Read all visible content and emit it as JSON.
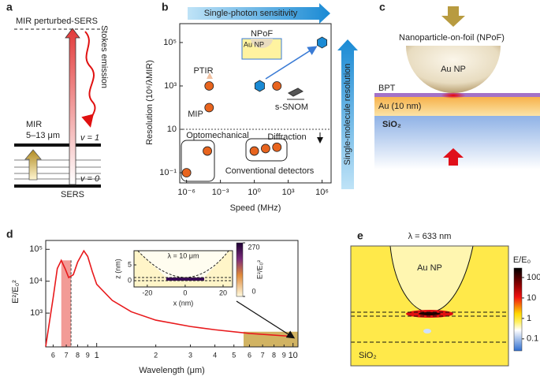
{
  "panel_a": {
    "label": "a",
    "top_level": "MIR perturbed-SERS",
    "emission": "Stokes emission",
    "excitation": "MIR",
    "excitation_range": "5–13 μm",
    "upper_level": "v = 1",
    "lower_level": "v = 0",
    "scattering": "SERS"
  },
  "chart_data": [
    {
      "type": "scatter",
      "panel_label": "b",
      "x_label": "Speed (MHz)",
      "y_label": "Resolution (10⁶/λMIR)",
      "log_x": true,
      "log_y": true,
      "xlim": [
        2.5e-07,
        6300000.0
      ],
      "ylim": [
        0.034,
        740000
      ],
      "xticks": [
        {
          "value": 1e-06,
          "label": "10⁻⁶"
        },
        {
          "value": 0.001,
          "label": "10⁻³"
        },
        {
          "value": 1,
          "label": "10⁰"
        },
        {
          "value": 1000,
          "label": "10³"
        },
        {
          "value": 1000000,
          "label": "10⁶"
        }
      ],
      "yticks": [
        {
          "value": 0.1,
          "label": "10⁻¹"
        },
        10,
        {
          "value": 1000,
          "label": "10³"
        },
        {
          "value": 100000,
          "label": "10⁵"
        }
      ],
      "x": [
        1e-06,
        7e-05,
        1,
        10,
        100,
        0.0001,
        0.0001,
        100,
        3,
        1000000
      ],
      "values": [
        0.1,
        1,
        1,
        1.3,
        1.5,
        100,
        1000,
        1000,
        1000,
        100000
      ],
      "markers": [
        "circle",
        "circle",
        "circle",
        "circle",
        "circle",
        "circle",
        "circle",
        "circle",
        "hexagon",
        "hexagon"
      ],
      "marker_colors": {
        "circle": "#e8641e",
        "hexagon": "#1a8ad4"
      },
      "diffraction_limit": 10,
      "annotations": [
        "Single-photon sensitivity",
        "Single-molecule resolution",
        "NPoF",
        "Au NP",
        "PTIR",
        "MIP",
        "s-SNOM",
        "Optomechanical",
        "Diffraction",
        "Conventional detectors"
      ]
    },
    {
      "type": "line",
      "panel_label": "d",
      "x_label": "Wavelength (μm)",
      "y_label": "E²/E₀²",
      "log_x": true,
      "log_y": true,
      "xlim": [
        0.55,
        10.6
      ],
      "ylim": [
        87,
        190000
      ],
      "xticks": [
        {
          "value": 0.6,
          "label": "6"
        },
        {
          "value": 0.7,
          "label": "7"
        },
        {
          "value": 0.8,
          "label": "8"
        },
        {
          "value": 0.9,
          "label": "9"
        },
        1,
        2,
        3,
        4,
        5,
        6,
        7,
        8,
        9,
        10
      ],
      "yticks": [
        {
          "value": 1000,
          "label": "10³"
        },
        {
          "value": 10000,
          "label": "10⁴"
        },
        {
          "value": 100000,
          "label": "10⁵"
        }
      ],
      "x": [
        0.55,
        0.6,
        0.63,
        0.66,
        0.69,
        0.72,
        0.76,
        0.8,
        0.86,
        0.9,
        0.95,
        1,
        1.2,
        1.5,
        2,
        3,
        4,
        6,
        10
      ],
      "values": [
        90,
        3000,
        25000,
        45000,
        25000,
        13000,
        16000,
        40000,
        90000,
        60000,
        20000,
        8000,
        2500,
        1100,
        600,
        380,
        300,
        230,
        185
      ],
      "color": "#e8191c",
      "bands": [
        {
          "x": [
            0.66,
            0.74
          ],
          "top": 45000,
          "color": "#f08a84"
        },
        {
          "x": [
            5.6,
            10.6
          ],
          "top": 260,
          "color": "#c9a646"
        }
      ],
      "inset": {
        "title": "λ = 10 μm",
        "x_label": "x (nm)",
        "y_label": "z (nm)",
        "xlim": [
          -27,
          25
        ],
        "ylim": [
          -2,
          9.5
        ],
        "xticks": [
          -20,
          0,
          20
        ],
        "yticks": [
          0,
          5
        ],
        "colorbar_label": "E²/E₀²",
        "clim": [
          0,
          270
        ],
        "cticks": [
          0,
          270
        ]
      }
    }
  ],
  "panel_c": {
    "label": "c",
    "title": "Nanoparticle-on-foil (NPoF)",
    "particle": "Au NP",
    "spacer": "BPT",
    "film": "Au (10 nm)",
    "substrate": "SiO₂"
  },
  "panel_e": {
    "label": "e",
    "title": "λ = 633 nm",
    "particle": "Au NP",
    "substrate": "SiO₂",
    "colorbar_label": "E/E₀",
    "clim": [
      0.026,
      290
    ],
    "cticks": [
      100,
      10,
      1,
      0.1
    ]
  }
}
